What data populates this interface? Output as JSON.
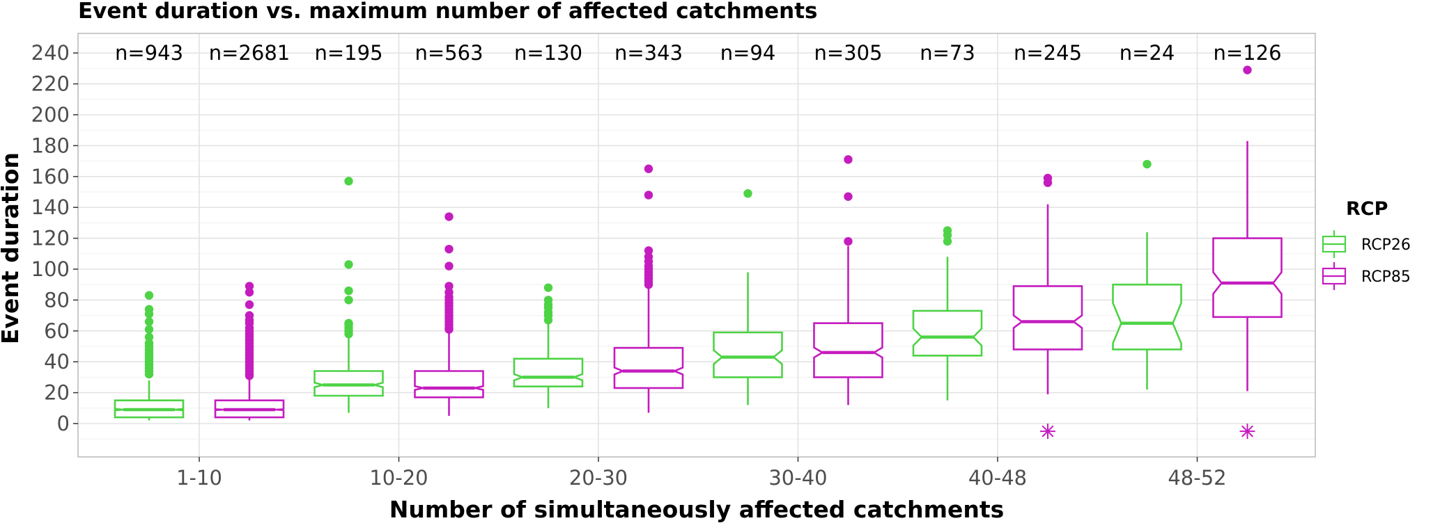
{
  "chart_data": {
    "type": "boxplot",
    "title": "Event duration vs. maximum number of affected catchments",
    "xlabel": "Number of simultaneously affected catchments",
    "ylabel": "Event duration",
    "categories": [
      "1-10",
      "10-20",
      "20-30",
      "30-40",
      "40-48",
      "48-52"
    ],
    "y_ticks": [
      0,
      20,
      40,
      60,
      80,
      100,
      120,
      140,
      160,
      180,
      200,
      220,
      240
    ],
    "ylim": [
      -22,
      250
    ],
    "grid": true,
    "notched": true,
    "legend": {
      "title": "RCP",
      "position": "right",
      "entries": [
        "RCP26",
        "RCP85"
      ]
    },
    "colors": {
      "RCP26": "#4dd345",
      "RCP85": "#c41cbf"
    },
    "series": [
      {
        "name": "RCP26",
        "n_labels": [
          "n=943",
          "n=195",
          "n=130",
          "n=94",
          "n=73",
          "n=24"
        ],
        "boxes": [
          {
            "whisker_low": 2,
            "q1": 4,
            "median": 9,
            "q3": 15,
            "whisker_high": 28,
            "notch_low": 8.5,
            "notch_high": 9.5,
            "outliers": [
              83,
              74,
              71,
              66,
              61,
              56,
              52,
              50,
              48,
              46,
              44,
              42,
              40,
              38,
              36,
              34,
              32
            ]
          },
          {
            "whisker_low": 7,
            "q1": 18,
            "median": 25,
            "q3": 34,
            "whisker_high": 57,
            "notch_low": 23.5,
            "notch_high": 26.5,
            "outliers": [
              157,
              103,
              86,
              80,
              65,
              64,
              62,
              60,
              58
            ]
          },
          {
            "whisker_low": 10,
            "q1": 24,
            "median": 30,
            "q3": 42,
            "whisker_high": 66,
            "notch_low": 28,
            "notch_high": 32,
            "outliers": [
              88,
              80,
              77,
              75,
              72,
              70,
              67
            ]
          },
          {
            "whisker_low": 12,
            "q1": 30,
            "median": 43,
            "q3": 59,
            "whisker_high": 98,
            "notch_low": 38.5,
            "notch_high": 47.5,
            "outliers": [
              149
            ]
          },
          {
            "whisker_low": 15,
            "q1": 44,
            "median": 56,
            "q3": 73,
            "whisker_high": 108,
            "notch_low": 50.5,
            "notch_high": 61.5,
            "outliers": [
              125,
              122,
              118
            ]
          },
          {
            "whisker_low": 22,
            "q1": 48,
            "median": 65,
            "q3": 90,
            "whisker_high": 124,
            "notch_low": 52,
            "notch_high": 78,
            "outliers": [
              168
            ]
          }
        ]
      },
      {
        "name": "RCP85",
        "n_labels": [
          "n=2681",
          "n=563",
          "n=343",
          "n=305",
          "n=245",
          "n=126"
        ],
        "boxes": [
          {
            "whisker_low": 2,
            "q1": 4,
            "median": 9,
            "q3": 15,
            "whisker_high": 29,
            "notch_low": 8.7,
            "notch_high": 9.3,
            "outliers": [
              89,
              85,
              77,
              70,
              67,
              65,
              62,
              60,
              58,
              56,
              54,
              52,
              50,
              48,
              46,
              44,
              42,
              40,
              38,
              36,
              34,
              32,
              31
            ]
          },
          {
            "whisker_low": 5,
            "q1": 17,
            "median": 23,
            "q3": 34,
            "whisker_high": 59,
            "notch_low": 21.8,
            "notch_high": 24.2,
            "outliers": [
              134,
              113,
              102,
              89,
              85,
              82,
              80,
              78,
              76,
              74,
              72,
              70,
              68,
              66,
              64,
              62,
              61
            ]
          },
          {
            "whisker_low": 7,
            "q1": 23,
            "median": 34,
            "q3": 49,
            "whisker_high": 88,
            "notch_low": 31.8,
            "notch_high": 36.2,
            "outliers": [
              165,
              148,
              112,
              108,
              105,
              102,
              100,
              98,
              96,
              94,
              92,
              90
            ]
          },
          {
            "whisker_low": 12,
            "q1": 30,
            "median": 46,
            "q3": 65,
            "whisker_high": 115,
            "notch_low": 42.8,
            "notch_high": 49.2,
            "outliers": [
              171,
              147,
              118
            ]
          },
          {
            "whisker_low": 19,
            "q1": 48,
            "median": 66,
            "q3": 89,
            "whisker_high": 142,
            "notch_low": 62,
            "notch_high": 70,
            "outliers": [
              159,
              156
            ],
            "mean_marker": -5
          },
          {
            "whisker_low": 21,
            "q1": 69,
            "median": 91,
            "q3": 120,
            "whisker_high": 183,
            "notch_low": 84,
            "notch_high": 98,
            "outliers": [
              229
            ],
            "mean_marker": -5
          }
        ]
      }
    ]
  }
}
